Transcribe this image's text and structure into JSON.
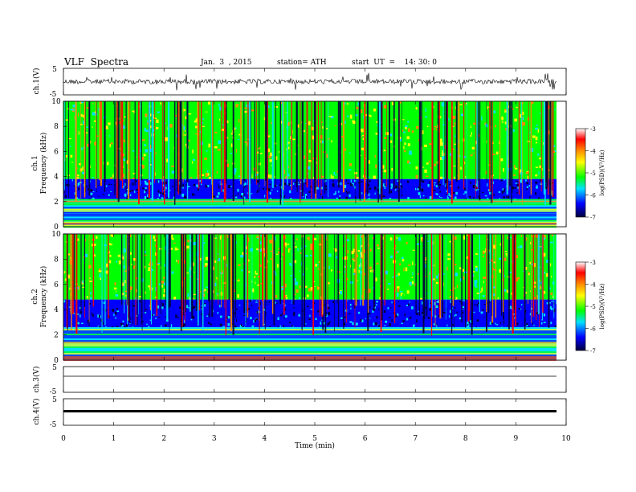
{
  "header": {
    "title": "VLF  Spectra",
    "date": "Jan.  3  , 2015",
    "station": "station= ATH",
    "start_ut": "start  UT  =    14: 30: 0"
  },
  "colors": {
    "cb_red": "#ff0000",
    "cb_orange": "#ff8c00",
    "cb_yellow": "#ffff00",
    "cb_green": "#00ff00",
    "cb_cyan": "#00e0ff",
    "cb_blue": "#0000ff",
    "cb_darkblue": "#00003c",
    "trace": "#000000"
  },
  "chart_data": [
    {
      "type": "line",
      "ylabel": "ch.1(V)",
      "ylim": [
        -5,
        5
      ],
      "yticks": [
        "5",
        "-5"
      ],
      "description_series": "ch.1 waveform, noisy trace around 0 V",
      "xlim": [
        0,
        10
      ]
    },
    {
      "type": "heatmap",
      "ylabel": "Frequency  (kHz)",
      "channel_label": "ch.1",
      "ylim": [
        0,
        10
      ],
      "yticks": [
        "0",
        "2",
        "4",
        "6",
        "8",
        "10"
      ],
      "xlim": [
        0,
        10
      ],
      "colorbar": {
        "label": "log(PSD)(V²/Hz)",
        "ticks": [
          "-3",
          "-4",
          "-5",
          "-6",
          "-7"
        ],
        "range": [
          -7,
          -3
        ]
      }
    },
    {
      "type": "heatmap",
      "ylabel": "Frequency  (kHz)",
      "channel_label": "ch.2",
      "ylim": [
        0,
        10
      ],
      "yticks": [
        "0",
        "2",
        "4",
        "6",
        "8",
        "10"
      ],
      "xlim": [
        0,
        10
      ],
      "colorbar": {
        "label": "log(PSD)(V²/Hz)",
        "ticks": [
          "-3",
          "-4",
          "-5",
          "-6",
          "-7"
        ],
        "range": [
          -7,
          -3
        ]
      }
    },
    {
      "type": "line",
      "ylabel": "ch.3(V)",
      "ylim": [
        -5,
        5
      ],
      "yticks": [
        "5",
        "-5"
      ],
      "xlim": [
        0,
        10
      ]
    },
    {
      "type": "line",
      "ylabel": "ch.4(V)",
      "ylim": [
        -5,
        5
      ],
      "yticks": [
        "5",
        "-5"
      ],
      "xlim": [
        0,
        10
      ],
      "xlabel": "Time  (min)",
      "xticks": [
        "0",
        "1",
        "2",
        "3",
        "4",
        "5",
        "6",
        "7",
        "8",
        "9",
        "10"
      ]
    }
  ]
}
